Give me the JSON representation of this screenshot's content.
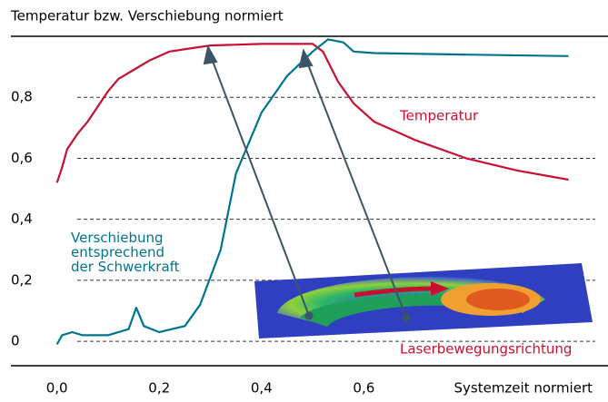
{
  "chart_data": {
    "type": "line",
    "title": "Temperatur bzw. Verschiebung normiert",
    "x_label": "Systemzeit normiert",
    "xlim": [
      -0.09,
      1.04
    ],
    "ylim": [
      -0.08,
      1.0
    ],
    "xticks": [
      {
        "value": 0,
        "label": "0,0"
      },
      {
        "value": 0.2,
        "label": "0,2"
      },
      {
        "value": 0.4,
        "label": "0,4"
      },
      {
        "value": 0.6,
        "label": "0,6"
      }
    ],
    "yticks": [
      0,
      {
        "value": 0.2,
        "label": "0,2"
      },
      {
        "value": 0.4,
        "label": "0,4"
      },
      {
        "value": 0.6,
        "label": "0,6"
      },
      {
        "value": 0.8,
        "label": "0,8"
      }
    ],
    "grid": true,
    "series": [
      {
        "name": "Temperatur",
        "color": "#c8102e",
        "x": [
          0,
          0.01,
          0.02,
          0.04,
          0.06,
          0.08,
          0.1,
          0.12,
          0.15,
          0.18,
          0.22,
          0.26,
          0.3,
          0.4,
          0.5,
          0.52,
          0.55,
          0.58,
          0.62,
          0.7,
          0.8,
          0.9,
          1.0
        ],
        "values": [
          0.52,
          0.57,
          0.63,
          0.68,
          0.72,
          0.77,
          0.82,
          0.86,
          0.89,
          0.92,
          0.95,
          0.96,
          0.97,
          0.975,
          0.975,
          0.95,
          0.85,
          0.78,
          0.72,
          0.66,
          0.6,
          0.56,
          0.53
        ]
      },
      {
        "name": "Verschiebung entsprechend der Schwerkraft",
        "color": "#00738f",
        "x": [
          0,
          0.01,
          0.03,
          0.05,
          0.1,
          0.14,
          0.155,
          0.17,
          0.2,
          0.25,
          0.28,
          0.32,
          0.35,
          0.4,
          0.45,
          0.5,
          0.53,
          0.56,
          0.58,
          0.62,
          0.8,
          1.0
        ],
        "values": [
          -0.01,
          0.02,
          0.03,
          0.02,
          0.02,
          0.04,
          0.11,
          0.05,
          0.03,
          0.05,
          0.12,
          0.3,
          0.55,
          0.75,
          0.87,
          0.95,
          0.99,
          0.98,
          0.95,
          0.945,
          0.94,
          0.935
        ]
      }
    ],
    "annotation": "Laserbewegungsrichtung"
  }
}
